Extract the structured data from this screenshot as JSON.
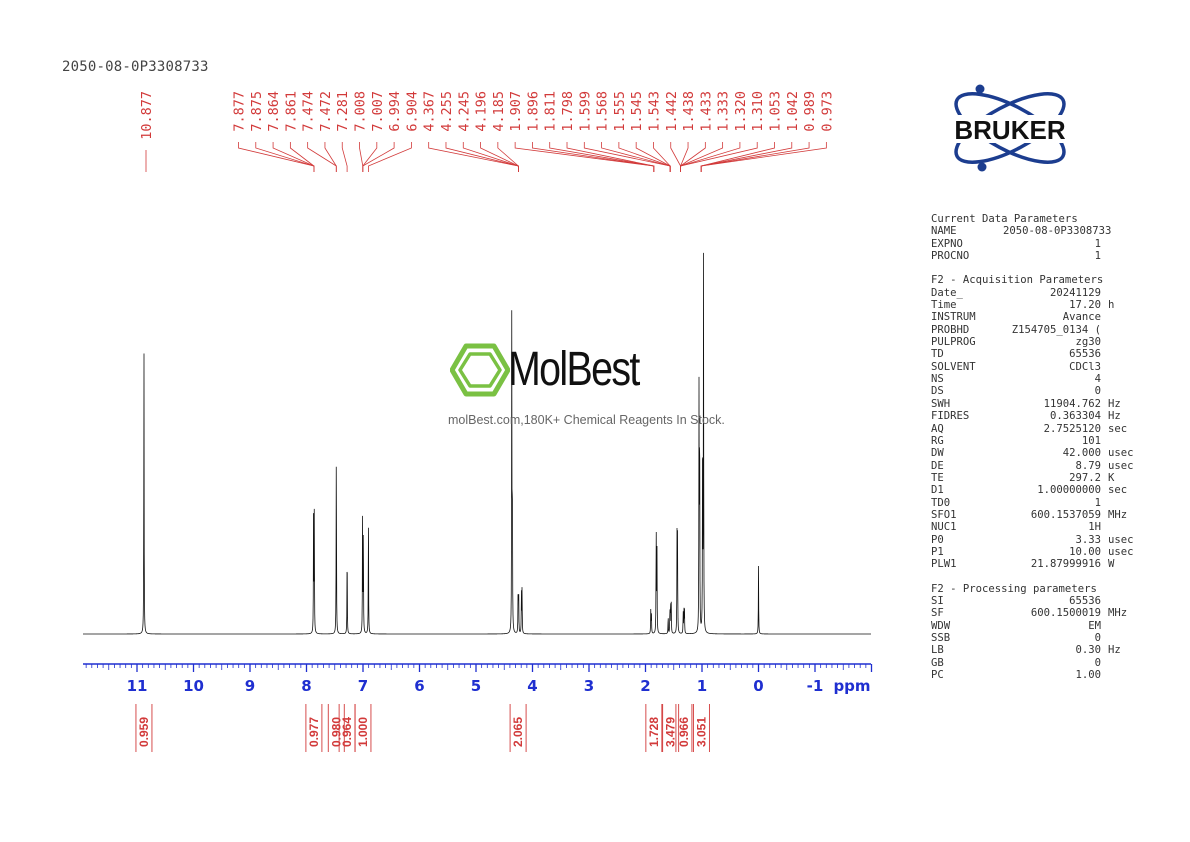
{
  "header": {
    "sample_id": "2050-08-0P3308733"
  },
  "logo": {
    "text": "BRUKER",
    "color": "#1c3d8f"
  },
  "watermark": {
    "name": "MolBest",
    "tagline": "molBest.com,180K+ Chemical Reagents In Stock.",
    "accent": "#7ac143"
  },
  "chart_data": {
    "type": "line",
    "xlabel": "ppm",
    "xlim": [
      12.0,
      -2.0
    ],
    "reversed_axis": true,
    "x_ticks": [
      11,
      10,
      9,
      8,
      7,
      6,
      5,
      4,
      3,
      2,
      1,
      0,
      -1
    ],
    "x_tick_labels": [
      "11",
      "10",
      "9",
      "8",
      "7",
      "6",
      "5",
      "4",
      "3",
      "2",
      "1",
      "0",
      "-1"
    ],
    "axis_color": "#1f2fd0",
    "annotation_color": "#d23a3a",
    "peak_labels": [
      "10.877",
      "7.877",
      "7.875",
      "7.864",
      "7.861",
      "7.474",
      "7.472",
      "7.281",
      "7.008",
      "7.007",
      "6.994",
      "6.904",
      "4.367",
      "4.255",
      "4.245",
      "4.196",
      "4.185",
      "1.907",
      "1.896",
      "1.811",
      "1.798",
      "1.599",
      "1.568",
      "1.555",
      "1.545",
      "1.543",
      "1.442",
      "1.438",
      "1.433",
      "1.333",
      "1.320",
      "1.310",
      "1.053",
      "1.042",
      "0.989",
      "0.973"
    ],
    "peak_groups": [
      {
        "from": 0,
        "to": 0
      },
      {
        "from": 1,
        "to": 4
      },
      {
        "from": 5,
        "to": 6
      },
      {
        "from": 7,
        "to": 7
      },
      {
        "from": 8,
        "to": 10
      },
      {
        "from": 11,
        "to": 11
      },
      {
        "from": 12,
        "to": 16
      },
      {
        "from": 17,
        "to": 20
      },
      {
        "from": 21,
        "to": 25
      },
      {
        "from": 26,
        "to": 31
      },
      {
        "from": 32,
        "to": 35
      }
    ],
    "peaks": [
      {
        "ppm": 10.877,
        "height": 0.8
      },
      {
        "ppm": 7.875,
        "height": 0.34
      },
      {
        "ppm": 7.862,
        "height": 0.33
      },
      {
        "ppm": 7.474,
        "height": 0.28
      },
      {
        "ppm": 7.471,
        "height": 0.27
      },
      {
        "ppm": 7.281,
        "height": 0.24
      },
      {
        "ppm": 7.008,
        "height": 0.32
      },
      {
        "ppm": 6.994,
        "height": 0.3
      },
      {
        "ppm": 6.904,
        "height": 0.33
      },
      {
        "ppm": 4.367,
        "height": 0.83
      },
      {
        "ppm": 4.356,
        "height": 0.42
      },
      {
        "ppm": 4.255,
        "height": 0.12
      },
      {
        "ppm": 4.245,
        "height": 0.12
      },
      {
        "ppm": 4.196,
        "height": 0.12
      },
      {
        "ppm": 4.185,
        "height": 0.12
      },
      {
        "ppm": 1.907,
        "height": 0.06
      },
      {
        "ppm": 1.896,
        "height": 0.07
      },
      {
        "ppm": 1.811,
        "height": 0.29
      },
      {
        "ppm": 1.798,
        "height": 0.27
      },
      {
        "ppm": 1.599,
        "height": 0.05
      },
      {
        "ppm": 1.568,
        "height": 0.07
      },
      {
        "ppm": 1.555,
        "height": 0.09
      },
      {
        "ppm": 1.545,
        "height": 0.08
      },
      {
        "ppm": 1.442,
        "height": 0.26
      },
      {
        "ppm": 1.433,
        "height": 0.25
      },
      {
        "ppm": 1.333,
        "height": 0.06
      },
      {
        "ppm": 1.32,
        "height": 0.07
      },
      {
        "ppm": 1.31,
        "height": 0.06
      },
      {
        "ppm": 1.053,
        "height": 0.63
      },
      {
        "ppm": 1.042,
        "height": 0.62
      },
      {
        "ppm": 0.989,
        "height": 0.62
      },
      {
        "ppm": 0.973,
        "height": 1.0
      },
      {
        "ppm": 0.0,
        "height": 0.18
      }
    ],
    "integrals": [
      {
        "ppm": 10.877,
        "value": "0.959"
      },
      {
        "ppm": 7.869,
        "value": "0.977"
      },
      {
        "ppm": 7.473,
        "value": "0.980"
      },
      {
        "ppm": 7.281,
        "value": "0.964"
      },
      {
        "ppm": 7.001,
        "value": "1.000"
      },
      {
        "ppm": 4.255,
        "value": "2.065"
      },
      {
        "ppm": 1.852,
        "value": "1.728"
      },
      {
        "ppm": 1.555,
        "value": "3.479"
      },
      {
        "ppm": 1.32,
        "value": "0.966"
      },
      {
        "ppm": 1.01,
        "value": "3.051"
      }
    ]
  },
  "params": {
    "sections": [
      {
        "title": "Current Data Parameters",
        "rows": [
          {
            "name": "NAME",
            "value": "2050-08-0P3308733",
            "unit": ""
          },
          {
            "name": "EXPNO",
            "value": "1",
            "unit": ""
          },
          {
            "name": "PROCNO",
            "value": "1",
            "unit": ""
          }
        ]
      },
      {
        "title": "F2 - Acquisition Parameters",
        "rows": [
          {
            "name": "Date_",
            "value": "20241129",
            "unit": ""
          },
          {
            "name": "Time",
            "value": "17.20",
            "unit": "h"
          },
          {
            "name": "INSTRUM",
            "value": "Avance",
            "unit": ""
          },
          {
            "name": "PROBHD",
            "value": "Z154705_0134 (",
            "unit": ""
          },
          {
            "name": "PULPROG",
            "value": "zg30",
            "unit": ""
          },
          {
            "name": "TD",
            "value": "65536",
            "unit": ""
          },
          {
            "name": "SOLVENT",
            "value": "CDCl3",
            "unit": ""
          },
          {
            "name": "NS",
            "value": "4",
            "unit": ""
          },
          {
            "name": "DS",
            "value": "0",
            "unit": ""
          },
          {
            "name": "SWH",
            "value": "11904.762",
            "unit": "Hz"
          },
          {
            "name": "FIDRES",
            "value": "0.363304",
            "unit": "Hz"
          },
          {
            "name": "AQ",
            "value": "2.7525120",
            "unit": "sec"
          },
          {
            "name": "RG",
            "value": "101",
            "unit": ""
          },
          {
            "name": "DW",
            "value": "42.000",
            "unit": "usec"
          },
          {
            "name": "DE",
            "value": "8.79",
            "unit": "usec"
          },
          {
            "name": "TE",
            "value": "297.2",
            "unit": "K"
          },
          {
            "name": "D1",
            "value": "1.00000000",
            "unit": "sec"
          },
          {
            "name": "TD0",
            "value": "1",
            "unit": ""
          },
          {
            "name": "SFO1",
            "value": "600.1537059",
            "unit": "MHz"
          },
          {
            "name": "NUC1",
            "value": "1H",
            "unit": ""
          },
          {
            "name": "P0",
            "value": "3.33",
            "unit": "usec"
          },
          {
            "name": "P1",
            "value": "10.00",
            "unit": "usec"
          },
          {
            "name": "PLW1",
            "value": "21.87999916",
            "unit": "W"
          }
        ]
      },
      {
        "title": "F2 - Processing parameters",
        "rows": [
          {
            "name": "SI",
            "value": "65536",
            "unit": ""
          },
          {
            "name": "SF",
            "value": "600.1500019",
            "unit": "MHz"
          },
          {
            "name": "WDW",
            "value": "EM",
            "unit": ""
          },
          {
            "name": "SSB",
            "value": "0",
            "unit": ""
          },
          {
            "name": "LB",
            "value": "0.30",
            "unit": "Hz"
          },
          {
            "name": "GB",
            "value": "0",
            "unit": ""
          },
          {
            "name": "PC",
            "value": "1.00",
            "unit": ""
          }
        ]
      }
    ]
  }
}
